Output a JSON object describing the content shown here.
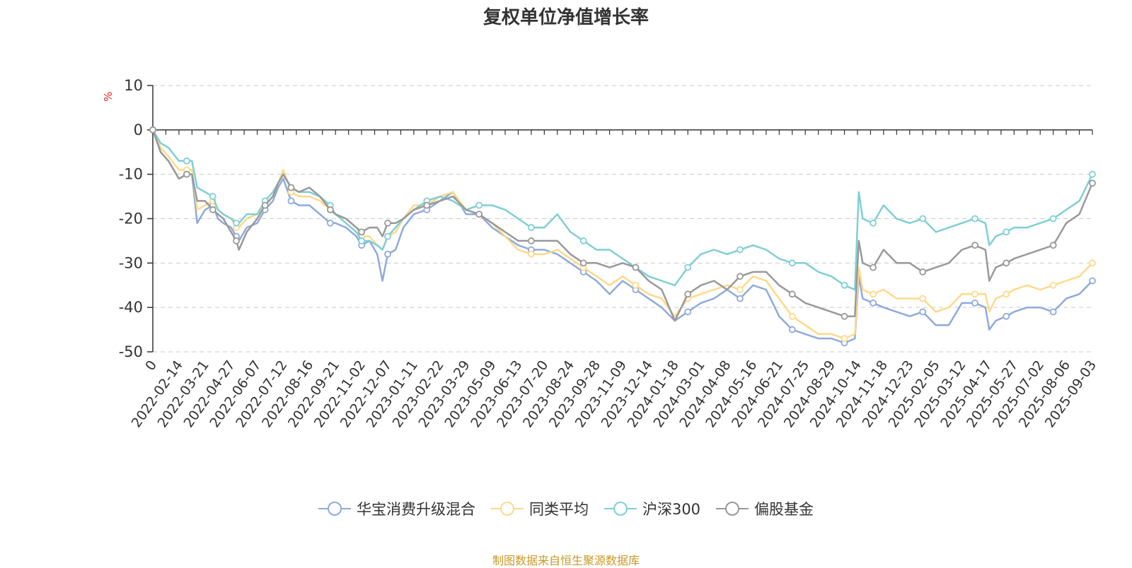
{
  "chart_data": {
    "type": "line",
    "title": "复权单位净值增长率",
    "ylabel": "%",
    "ylim": [
      -50,
      10
    ],
    "yticks": [
      10,
      0,
      -10,
      -20,
      -30,
      -40,
      -50
    ],
    "x_labels": [
      "0",
      "2022-02-14",
      "2022-03-21",
      "2022-04-27",
      "2022-06-07",
      "2022-07-12",
      "2022-08-16",
      "2022-09-21",
      "2022-11-02",
      "2022-12-07",
      "2023-01-11",
      "2023-02-22",
      "2023-03-29",
      "2023-05-09",
      "2023-06-13",
      "2023-07-20",
      "2023-08-24",
      "2023-09-28",
      "2023-11-09",
      "2023-12-14",
      "2024-01-18",
      "2024-03-01",
      "2024-04-08",
      "2024-05-16",
      "2024-06-21",
      "2024-07-25",
      "2024-08-29",
      "2024-10-14",
      "2024-11-18",
      "2024-12-23",
      "2025-02-05",
      "2025-03-12",
      "2025-04-17",
      "2025-05-27",
      "2025-07-02",
      "2025-08-06",
      "2025-09-03"
    ],
    "x_index": [
      0,
      1,
      2,
      3,
      4,
      5,
      6,
      7,
      8,
      9,
      10,
      11,
      12,
      13,
      14,
      15,
      16,
      17,
      18,
      19,
      20,
      21,
      22,
      23,
      24,
      25,
      26,
      27,
      28,
      29,
      30,
      31,
      32,
      33,
      34,
      35,
      36
    ],
    "grid": "horizontal dashed",
    "legend": "bottom-center",
    "series": [
      {
        "name": "华宝消费升级混合",
        "color": "#8FAADC",
        "x": [
          0,
          0.3,
          0.6,
          1,
          1.3,
          1.5,
          1.7,
          2,
          2.3,
          2.5,
          2.7,
          3,
          3.2,
          3.3,
          3.6,
          4,
          4.3,
          4.6,
          4.8,
          5,
          5.3,
          5.6,
          6,
          6.4,
          6.8,
          7,
          7.4,
          7.8,
          8,
          8.3,
          8.6,
          8.8,
          9,
          9.3,
          9.6,
          10,
          10.5,
          11,
          11.5,
          12,
          12.5,
          13,
          13.5,
          14,
          14.5,
          15,
          15.5,
          16,
          16.5,
          17,
          17.5,
          18,
          18.5,
          19,
          19.5,
          20,
          20.5,
          21,
          21.5,
          22,
          22.5,
          23,
          23.5,
          24,
          24.5,
          25,
          25.5,
          26,
          26.5,
          26.9,
          27.05,
          27.2,
          27.6,
          28,
          28.5,
          29,
          29.5,
          30,
          30.5,
          31,
          31.5,
          31.9,
          32.05,
          32.3,
          32.7,
          33,
          33.5,
          34,
          34.5,
          35,
          35.5,
          36
        ],
        "y": [
          0,
          -5,
          -7,
          -11,
          -10,
          -10,
          -21,
          -18,
          -17,
          -20,
          -21,
          -22,
          -24,
          -25,
          -22,
          -21,
          -18,
          -16,
          -13,
          -11,
          -16,
          -17,
          -17,
          -19,
          -21,
          -21,
          -22,
          -24,
          -26,
          -25,
          -28,
          -34,
          -28,
          -27,
          -22,
          -19,
          -18,
          -16,
          -14,
          -19,
          -19,
          -22,
          -24,
          -26,
          -27,
          -27,
          -28,
          -30,
          -32,
          -34,
          -37,
          -34,
          -36,
          -38,
          -40,
          -43,
          -41,
          -39,
          -38,
          -36,
          -38,
          -35,
          -36,
          -42,
          -45,
          -46,
          -47,
          -47,
          -48,
          -47,
          -33,
          -38,
          -39,
          -40,
          -41,
          -42,
          -41,
          -44,
          -44,
          -39,
          -39,
          -40,
          -45,
          -43,
          -42,
          -41,
          -40,
          -40,
          -41,
          -38,
          -37,
          -34
        ]
      },
      {
        "name": "同类平均",
        "color": "#FFD98A",
        "x": [
          0,
          0.3,
          0.6,
          1,
          1.3,
          1.5,
          1.7,
          2,
          2.3,
          2.5,
          2.7,
          3,
          3.2,
          3.3,
          3.6,
          4,
          4.3,
          4.6,
          4.8,
          5,
          5.3,
          5.6,
          6,
          6.4,
          6.8,
          7,
          7.4,
          7.8,
          8,
          8.3,
          8.6,
          8.8,
          9,
          9.3,
          9.6,
          10,
          10.5,
          11,
          11.5,
          12,
          12.5,
          13,
          13.5,
          14,
          14.5,
          15,
          15.5,
          16,
          16.5,
          17,
          17.5,
          18,
          18.5,
          19,
          19.5,
          20,
          20.5,
          21,
          21.5,
          22,
          22.5,
          23,
          23.5,
          24,
          24.5,
          25,
          25.5,
          26,
          26.5,
          26.9,
          27.05,
          27.2,
          27.6,
          28,
          28.5,
          29,
          29.5,
          30,
          30.5,
          31,
          31.5,
          31.9,
          32.05,
          32.3,
          32.7,
          33,
          33.5,
          34,
          34.5,
          35,
          35.5,
          36
        ],
        "y": [
          0,
          -4,
          -6,
          -9,
          -9,
          -9,
          -18,
          -17,
          -16,
          -18,
          -19,
          -20,
          -22,
          -22,
          -20,
          -19,
          -17,
          -15,
          -12,
          -9,
          -14,
          -15,
          -15,
          -16,
          -18,
          -19,
          -20,
          -22,
          -24,
          -24,
          -26,
          -27,
          -24,
          -23,
          -20,
          -17,
          -17,
          -15,
          -14,
          -18,
          -19,
          -21,
          -24,
          -27,
          -28,
          -28,
          -27,
          -29,
          -31,
          -33,
          -35,
          -33,
          -35,
          -37,
          -38,
          -42,
          -38,
          -37,
          -36,
          -35,
          -36,
          -33,
          -34,
          -38,
          -42,
          -44,
          -46,
          -46,
          -47,
          -46,
          -31,
          -36,
          -37,
          -36,
          -38,
          -38,
          -38,
          -41,
          -40,
          -37,
          -37,
          -37,
          -41,
          -38,
          -37,
          -36,
          -35,
          -36,
          -35,
          -34,
          -33,
          -30
        ]
      },
      {
        "name": "沪深300",
        "color": "#7ECFD4",
        "x": [
          0,
          0.3,
          0.6,
          1,
          1.3,
          1.5,
          1.7,
          2,
          2.3,
          2.5,
          2.7,
          3,
          3.2,
          3.3,
          3.6,
          4,
          4.3,
          4.6,
          4.8,
          5,
          5.3,
          5.6,
          6,
          6.4,
          6.8,
          7,
          7.4,
          7.8,
          8,
          8.3,
          8.6,
          8.8,
          9,
          9.3,
          9.6,
          10,
          10.5,
          11,
          11.5,
          12,
          12.5,
          13,
          13.5,
          14,
          14.5,
          15,
          15.5,
          16,
          16.5,
          17,
          17.5,
          18,
          18.5,
          19,
          19.5,
          20,
          20.5,
          21,
          21.5,
          22,
          22.5,
          23,
          23.5,
          24,
          24.5,
          25,
          25.5,
          26,
          26.5,
          26.9,
          27.05,
          27.2,
          27.6,
          28,
          28.5,
          29,
          29.5,
          30,
          30.5,
          31,
          31.5,
          31.9,
          32.05,
          32.3,
          32.7,
          33,
          33.5,
          34,
          34.5,
          35,
          35.5,
          36
        ],
        "y": [
          0,
          -3,
          -4,
          -7,
          -7,
          -7,
          -13,
          -14,
          -15,
          -18,
          -19,
          -20,
          -21,
          -21,
          -19,
          -19,
          -16,
          -14,
          -12,
          -10,
          -13,
          -14,
          -14,
          -15,
          -17,
          -19,
          -21,
          -23,
          -25,
          -25,
          -26,
          -27,
          -24,
          -22,
          -20,
          -18,
          -16,
          -15,
          -16,
          -18,
          -17,
          -17,
          -18,
          -20,
          -22,
          -22,
          -19,
          -23,
          -25,
          -27,
          -27,
          -29,
          -31,
          -33,
          -34,
          -35,
          -31,
          -28,
          -27,
          -28,
          -27,
          -26,
          -27,
          -29,
          -30,
          -30,
          -32,
          -33,
          -35,
          -36,
          -14,
          -20,
          -21,
          -17,
          -20,
          -21,
          -20,
          -23,
          -22,
          -21,
          -20,
          -21,
          -26,
          -24,
          -23,
          -22,
          -22,
          -21,
          -20,
          -18,
          -16,
          -10
        ]
      },
      {
        "name": "偏股基金",
        "color": "#999999",
        "x": [
          0,
          0.3,
          0.6,
          1,
          1.3,
          1.5,
          1.7,
          2,
          2.3,
          2.5,
          2.7,
          3,
          3.2,
          3.3,
          3.6,
          4,
          4.3,
          4.6,
          4.8,
          5,
          5.3,
          5.6,
          6,
          6.4,
          6.8,
          7,
          7.4,
          7.8,
          8,
          8.3,
          8.6,
          8.8,
          9,
          9.3,
          9.6,
          10,
          10.5,
          11,
          11.5,
          12,
          12.5,
          13,
          13.5,
          14,
          14.5,
          15,
          15.5,
          16,
          16.5,
          17,
          17.5,
          18,
          18.5,
          19,
          19.5,
          20,
          20.5,
          21,
          21.5,
          22,
          22.5,
          23,
          23.5,
          24,
          24.5,
          25,
          25.5,
          26,
          26.5,
          26.9,
          27.05,
          27.2,
          27.6,
          28,
          28.5,
          29,
          29.5,
          30,
          30.5,
          31,
          31.5,
          31.9,
          32.05,
          32.3,
          32.7,
          33,
          33.5,
          34,
          34.5,
          35,
          35.5,
          36
        ],
        "y": [
          0,
          -5,
          -7,
          -11,
          -10,
          -10,
          -16,
          -16,
          -18,
          -19,
          -20,
          -23,
          -25,
          -27,
          -23,
          -20,
          -17,
          -15,
          -12,
          -10,
          -13,
          -14,
          -13,
          -15,
          -18,
          -19,
          -20,
          -22,
          -23,
          -22,
          -22,
          -24,
          -21,
          -21,
          -20,
          -18,
          -17,
          -16,
          -15,
          -18,
          -19,
          -21,
          -23,
          -25,
          -25,
          -25,
          -25,
          -28,
          -30,
          -30,
          -31,
          -30,
          -31,
          -34,
          -36,
          -43,
          -37,
          -35,
          -34,
          -36,
          -33,
          -32,
          -32,
          -35,
          -37,
          -39,
          -40,
          -41,
          -42,
          -42,
          -25,
          -30,
          -31,
          -27,
          -30,
          -30,
          -32,
          -31,
          -30,
          -27,
          -26,
          -27,
          -34,
          -31,
          -30,
          -29,
          -28,
          -27,
          -26,
          -21,
          -19,
          -12
        ]
      }
    ]
  },
  "legend": {
    "items": [
      {
        "label": "华宝消费升级混合",
        "color": "#8FAADC"
      },
      {
        "label": "同类平均",
        "color": "#FFD98A"
      },
      {
        "label": "沪深300",
        "color": "#7ECFD4"
      },
      {
        "label": "偏股基金",
        "color": "#999999"
      }
    ]
  },
  "source": "制图数据来自恒生聚源数据库"
}
